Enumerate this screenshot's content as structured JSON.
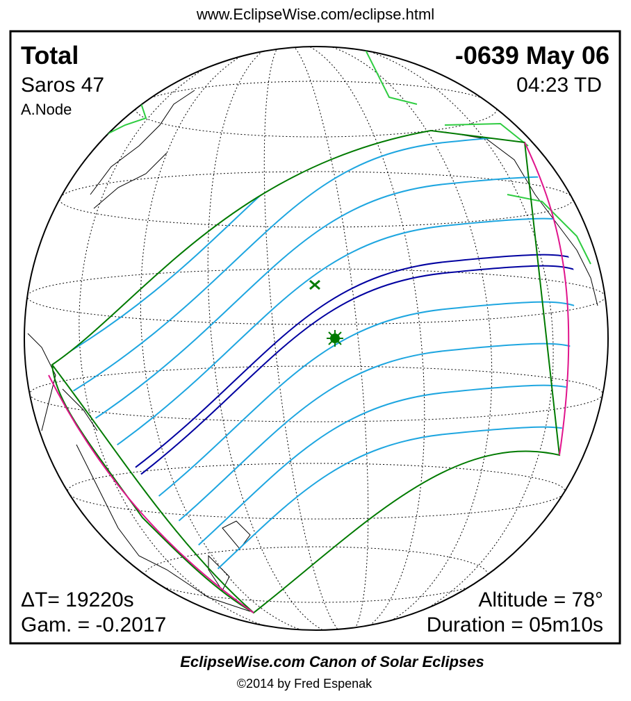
{
  "header": {
    "url": "www.EclipseWise.com/eclipse.html"
  },
  "map": {
    "type": "Total",
    "date": "-0639 May 06",
    "saros": "Saros  47",
    "time": "04:23 TD",
    "node": "A.Node",
    "delta_t": "ΔT=  19220s",
    "gamma": "Gam. = -0.2017",
    "altitude": "Altitude = 78°",
    "duration": "Duration = 05m10s"
  },
  "footer": {
    "title": "EclipseWise.com Canon of Solar Eclipses",
    "copyright": "©2014 by Fred Espenak"
  }
}
